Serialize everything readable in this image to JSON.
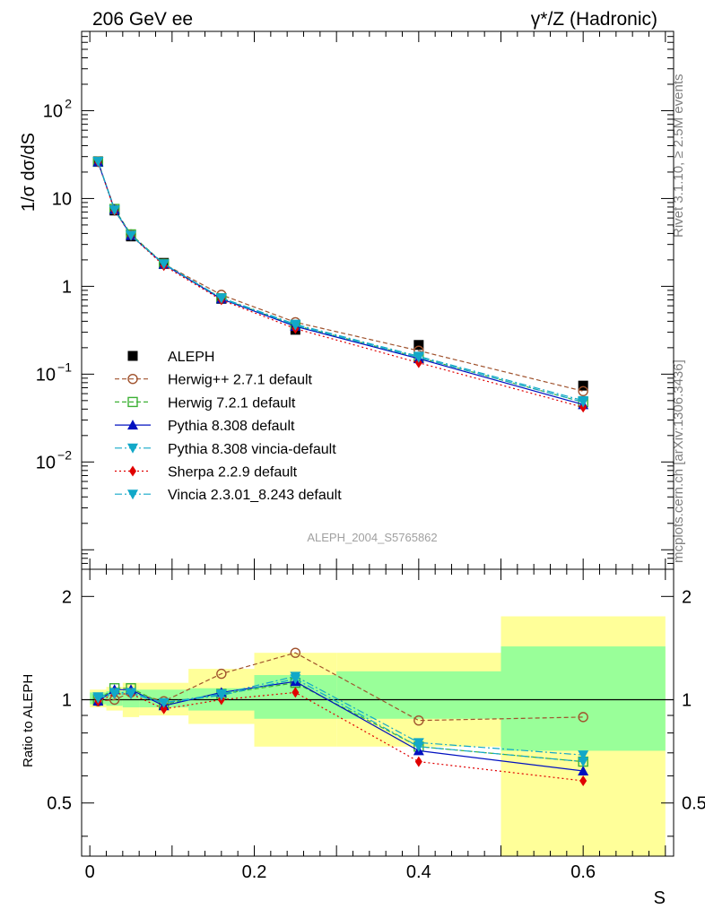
{
  "header": {
    "left": "206 GeV ee",
    "right": "γ*/Z (Hadronic)"
  },
  "side_labels": {
    "rivet": "Rivet 3.1.10, ≥ 2.5M events",
    "mcplots": "mcplots.cern.ch [arXiv:1306.3436]"
  },
  "watermark": "ALEPH_2004_S5765862",
  "colors": {
    "data": "#000000",
    "herwigpp": "#a0522d",
    "herwig7": "#3cb034",
    "pythia": "#0010c0",
    "pythia_vincia": "#12a8c8",
    "sherpa": "#e00000",
    "vincia": "#12a8c8",
    "band_inner": "#99ff99",
    "band_outer": "#ffff99"
  },
  "chart_data": [
    {
      "type": "line",
      "scale": "log",
      "ylabel": "1/σ  dσ/dS",
      "xlabel": "",
      "xlim": [
        -0.01,
        0.71
      ],
      "ylim": [
        0.0006,
        800
      ],
      "yticks": [
        {
          "value": 0.01,
          "base": "10",
          "exp": "−2"
        },
        {
          "value": 0.1,
          "base": "10",
          "exp": "−1"
        },
        {
          "value": 1,
          "base": "1",
          "exp": ""
        },
        {
          "value": 10,
          "base": "10",
          "exp": ""
        },
        {
          "value": 100,
          "base": "10",
          "exp": "2"
        }
      ],
      "x": [
        0.01,
        0.03,
        0.05,
        0.09,
        0.16,
        0.25,
        0.4,
        0.6
      ],
      "legend_position": "center-left",
      "series": [
        {
          "name": "ALEPH",
          "key": "data",
          "marker": "square-filled",
          "dash": "none",
          "values": [
            26.5,
            7.3,
            3.7,
            1.85,
            0.72,
            0.32,
            0.215,
            0.074
          ]
        },
        {
          "name": "Herwig++ 2.7.1 default",
          "key": "herwigpp",
          "marker": "circle-open",
          "dash": "5,3",
          "values": [
            26.3,
            7.5,
            3.9,
            1.8,
            0.8,
            0.39,
            0.185,
            0.064
          ]
        },
        {
          "name": "Herwig 7.2.1 default",
          "key": "herwig7",
          "marker": "square-open",
          "dash": "5,3",
          "values": [
            26.2,
            7.6,
            3.9,
            1.8,
            0.73,
            0.36,
            0.155,
            0.048
          ]
        },
        {
          "name": "Pythia 8.308 default",
          "key": "pythia",
          "marker": "triangle-up",
          "dash": "none",
          "values": [
            26.0,
            7.5,
            3.8,
            1.78,
            0.72,
            0.35,
            0.15,
            0.045
          ]
        },
        {
          "name": "Pythia 8.308 vincia-default",
          "key": "pythia_vincia",
          "marker": "triangle-down",
          "dash": "8,3,2,3",
          "values": [
            26.5,
            7.4,
            3.8,
            1.8,
            0.74,
            0.37,
            0.16,
            0.05
          ]
        },
        {
          "name": "Sherpa 2.2.9 default",
          "key": "sherpa",
          "marker": "diamond",
          "dash": "2,3",
          "values": [
            26.0,
            7.3,
            3.8,
            1.72,
            0.7,
            0.33,
            0.135,
            0.042
          ]
        },
        {
          "name": "Vincia 2.3.01_8.243 default",
          "key": "vincia",
          "marker": "triangle-down",
          "dash": "8,3,2,3",
          "values": [
            26.4,
            7.4,
            3.8,
            1.8,
            0.73,
            0.36,
            0.155,
            0.048
          ]
        }
      ]
    },
    {
      "type": "line",
      "ylabel": "Ratio to ALEPH",
      "xlabel": "S",
      "xlim": [
        -0.01,
        0.71
      ],
      "ylim": [
        0.35,
        2.4
      ],
      "yticks": [
        0.5,
        1,
        2
      ],
      "xticks": [
        0,
        0.2,
        0.4,
        0.6
      ],
      "x": [
        0.01,
        0.03,
        0.05,
        0.09,
        0.16,
        0.25,
        0.4,
        0.6
      ],
      "bands": [
        {
          "x0": 0.0,
          "x1": 0.02,
          "inner": [
            0.97,
            1.05
          ],
          "outer": [
            0.95,
            1.07
          ]
        },
        {
          "x0": 0.02,
          "x1": 0.04,
          "inner": [
            0.96,
            1.06
          ],
          "outer": [
            0.93,
            1.09
          ]
        },
        {
          "x0": 0.04,
          "x1": 0.06,
          "inner": [
            0.95,
            1.07
          ],
          "outer": [
            0.89,
            1.12
          ]
        },
        {
          "x0": 0.06,
          "x1": 0.12,
          "inner": [
            0.95,
            1.07
          ],
          "outer": [
            0.9,
            1.12
          ]
        },
        {
          "x0": 0.12,
          "x1": 0.2,
          "inner": [
            0.93,
            1.08
          ],
          "outer": [
            0.85,
            1.23
          ]
        },
        {
          "x0": 0.2,
          "x1": 0.3,
          "inner": [
            0.88,
            1.18
          ],
          "outer": [
            0.73,
            1.37
          ]
        },
        {
          "x0": 0.3,
          "x1": 0.5,
          "inner": [
            0.88,
            1.21
          ],
          "outer": [
            0.73,
            1.37
          ]
        },
        {
          "x0": 0.5,
          "x1": 0.7,
          "inner": [
            0.71,
            1.43
          ],
          "outer": [
            0.35,
            1.75
          ]
        }
      ],
      "series": [
        {
          "name": "Herwig++ 2.7.1 default",
          "key": "herwigpp",
          "marker": "circle-open",
          "dash": "5,3",
          "values": [
            0.99,
            1.0,
            1.05,
            0.99,
            1.19,
            1.37,
            0.87,
            0.89
          ]
        },
        {
          "name": "Herwig 7.2.1 default",
          "key": "herwig7",
          "marker": "square-open",
          "dash": "5,3",
          "values": [
            1.0,
            1.08,
            1.08,
            0.97,
            1.04,
            1.12,
            0.73,
            0.66
          ]
        },
        {
          "name": "Pythia 8.308 default",
          "key": "pythia",
          "marker": "triangle-up",
          "dash": "none",
          "values": [
            0.99,
            1.07,
            1.07,
            0.96,
            1.05,
            1.13,
            0.71,
            0.62
          ]
        },
        {
          "name": "Pythia 8.308 vincia-default",
          "key": "pythia_vincia",
          "marker": "triangle-down",
          "dash": "8,3,2,3",
          "values": [
            1.02,
            1.05,
            1.05,
            0.98,
            1.04,
            1.17,
            0.75,
            0.69
          ]
        },
        {
          "name": "Sherpa 2.2.9 default",
          "key": "sherpa",
          "marker": "diamond",
          "dash": "2,3",
          "values": [
            0.99,
            1.04,
            1.04,
            0.94,
            1.0,
            1.05,
            0.66,
            0.58
          ]
        },
        {
          "name": "Vincia 2.3.01_8.243 default",
          "key": "vincia",
          "marker": "triangle-down",
          "dash": "8,3,2,3",
          "values": [
            1.01,
            1.04,
            1.04,
            0.98,
            1.03,
            1.15,
            0.73,
            0.66
          ]
        }
      ]
    }
  ]
}
